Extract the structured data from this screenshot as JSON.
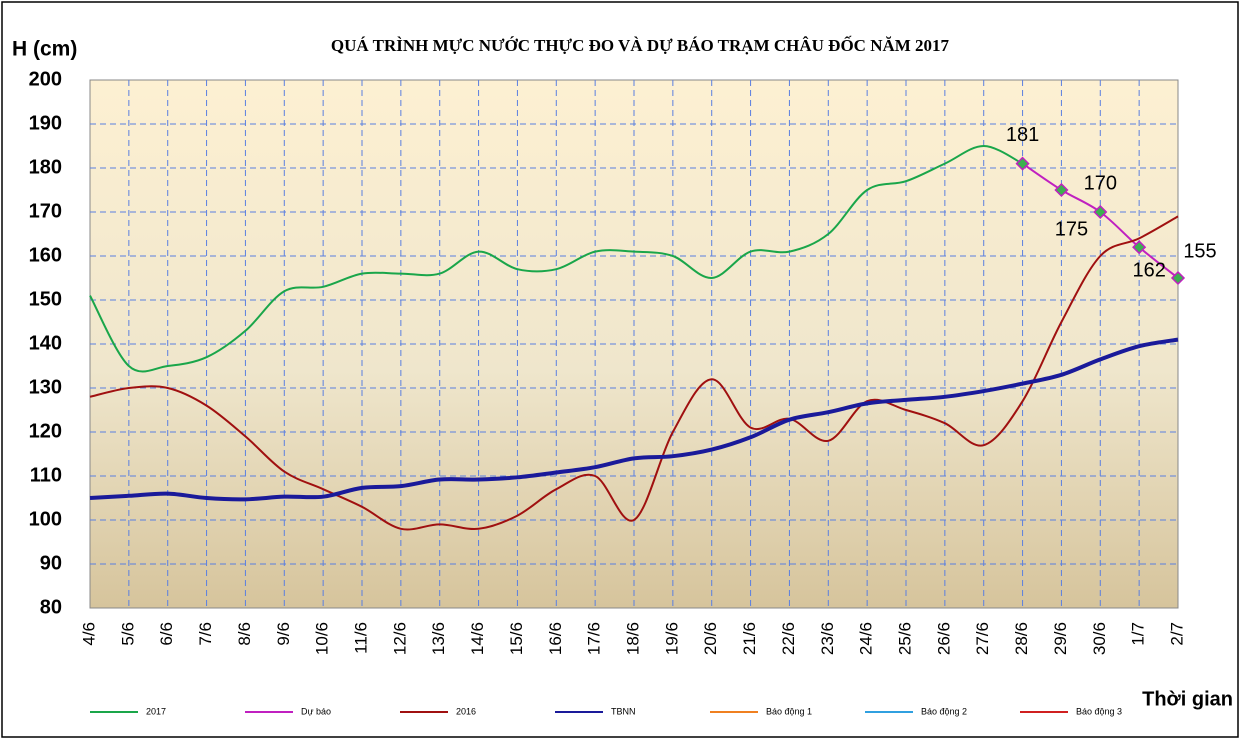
{
  "chart_data": {
    "type": "line",
    "title": "QUÁ TRÌNH MỰC NƯỚC THỰC ĐO VÀ DỰ BÁO TRẠM CHÂU ĐỐC  NĂM 2017",
    "y_label": "H (cm)",
    "x_label": "Thời gian",
    "categories": [
      "4/6",
      "5/6",
      "6/6",
      "7/6",
      "8/6",
      "9/6",
      "10/6",
      "11/6",
      "12/6",
      "13/6",
      "14/6",
      "15/6",
      "16/6",
      "17/6",
      "18/6",
      "19/6",
      "20/6",
      "21/6",
      "22/6",
      "23/6",
      "24/6",
      "25/6",
      "26/6",
      "27/6",
      "28/6",
      "29/6",
      "30/6",
      "1/7",
      "2/7"
    ],
    "ylim": [
      80,
      200
    ],
    "yticks": [
      80,
      90,
      100,
      110,
      120,
      130,
      140,
      150,
      160,
      170,
      180,
      190,
      200
    ],
    "grid": true,
    "legend": "bottom",
    "series": [
      {
        "name": "2017",
        "color": "#1aa64a",
        "values": [
          151,
          135,
          135,
          137,
          143,
          152,
          153,
          156,
          156,
          156,
          161,
          157,
          157,
          161,
          161,
          160,
          155,
          161,
          161,
          165,
          175,
          177,
          181,
          185,
          181,
          null,
          null,
          null,
          null
        ]
      },
      {
        "name": "Dự báo",
        "color": "#c020c0",
        "markers": true,
        "data_labels": true,
        "values": [
          null,
          null,
          null,
          null,
          null,
          null,
          null,
          null,
          null,
          null,
          null,
          null,
          null,
          null,
          null,
          null,
          null,
          null,
          null,
          null,
          null,
          null,
          null,
          null,
          181,
          175,
          170,
          162,
          155
        ]
      },
      {
        "name": "2016",
        "color": "#a01010",
        "values": [
          128,
          130,
          130,
          126,
          119,
          111,
          107,
          103,
          98,
          99,
          98,
          101,
          107,
          110,
          100,
          120,
          132,
          121,
          123,
          118,
          127,
          125,
          122,
          117,
          127,
          145,
          160,
          164,
          169
        ]
      },
      {
        "name": "TBNN",
        "color": "#1a1a9a",
        "width": 4,
        "values": [
          105,
          105.5,
          106,
          105,
          104.7,
          105.3,
          105.3,
          107.3,
          107.7,
          109.2,
          109.2,
          109.7,
          110.8,
          112,
          114,
          114.5,
          116,
          118.8,
          122.8,
          124.5,
          126.5,
          127.3,
          128,
          129.3,
          131,
          133,
          136.5,
          139.5,
          141
        ]
      },
      {
        "name": "Báo động 1",
        "color": "#f08020"
      },
      {
        "name": "Báo động 2",
        "color": "#30a0e0"
      },
      {
        "name": "Báo động 3",
        "color": "#d02020"
      }
    ]
  }
}
